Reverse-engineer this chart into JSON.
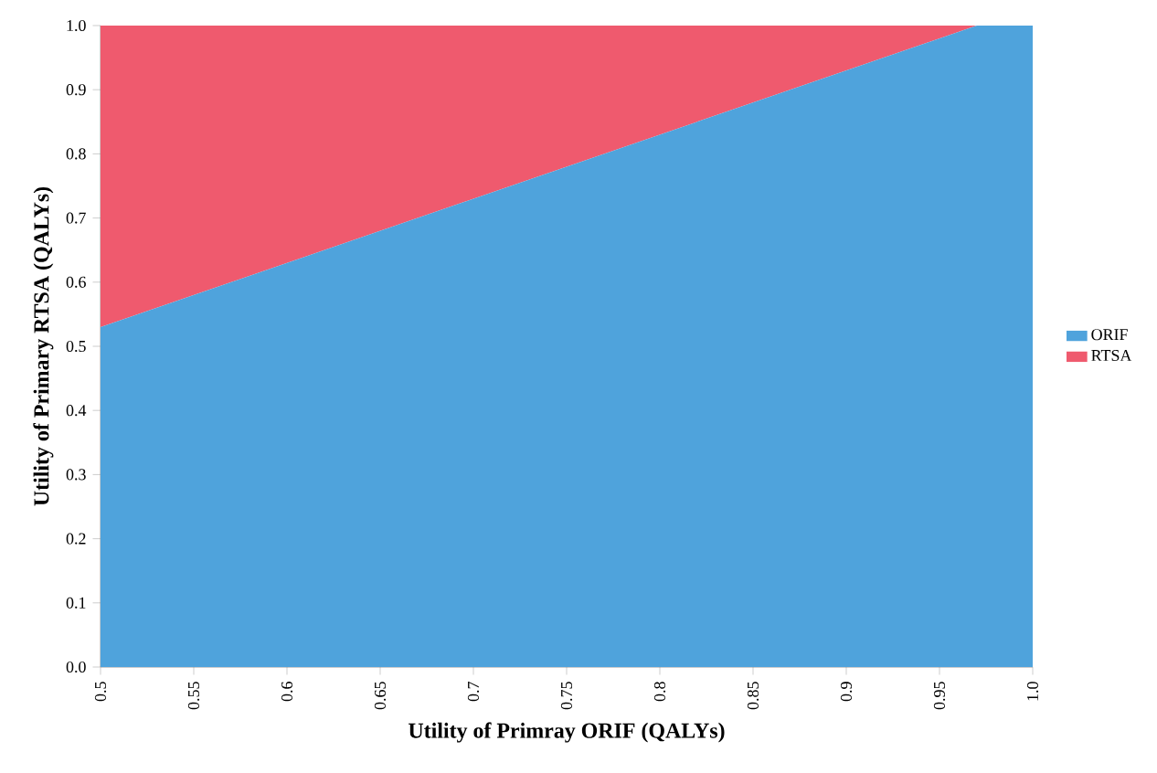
{
  "chart_data": {
    "type": "area",
    "stacked": true,
    "xlabel": "Utility of Primray ORIF (QALYs)",
    "ylabel": "Utility of Primary RTSA (QALYs)",
    "x": [
      0.5,
      0.97,
      1.0
    ],
    "series": [
      {
        "name": "ORIF",
        "color": "#4fa3dc",
        "values": [
          0.53,
          1.0,
          1.0
        ]
      },
      {
        "name": "RTSA",
        "color": "#ef5a6e",
        "values": [
          0.47,
          0.0,
          0.0
        ]
      }
    ],
    "xlim": [
      0.5,
      1.0
    ],
    "ylim": [
      0,
      1.0
    ],
    "xticks": [
      0.5,
      0.55,
      0.6,
      0.65,
      0.7,
      0.75,
      0.8,
      0.85,
      0.9,
      0.95,
      {
        "value": 1.0,
        "label": "1.0"
      }
    ],
    "yticks": [
      {
        "value": 0,
        "label": "0.0"
      },
      0.1,
      0.2,
      0.3,
      0.4,
      0.5,
      0.6,
      0.7,
      0.8,
      0.9,
      {
        "value": 1.0,
        "label": "1.0"
      }
    ],
    "grid": false,
    "legend": "right"
  }
}
